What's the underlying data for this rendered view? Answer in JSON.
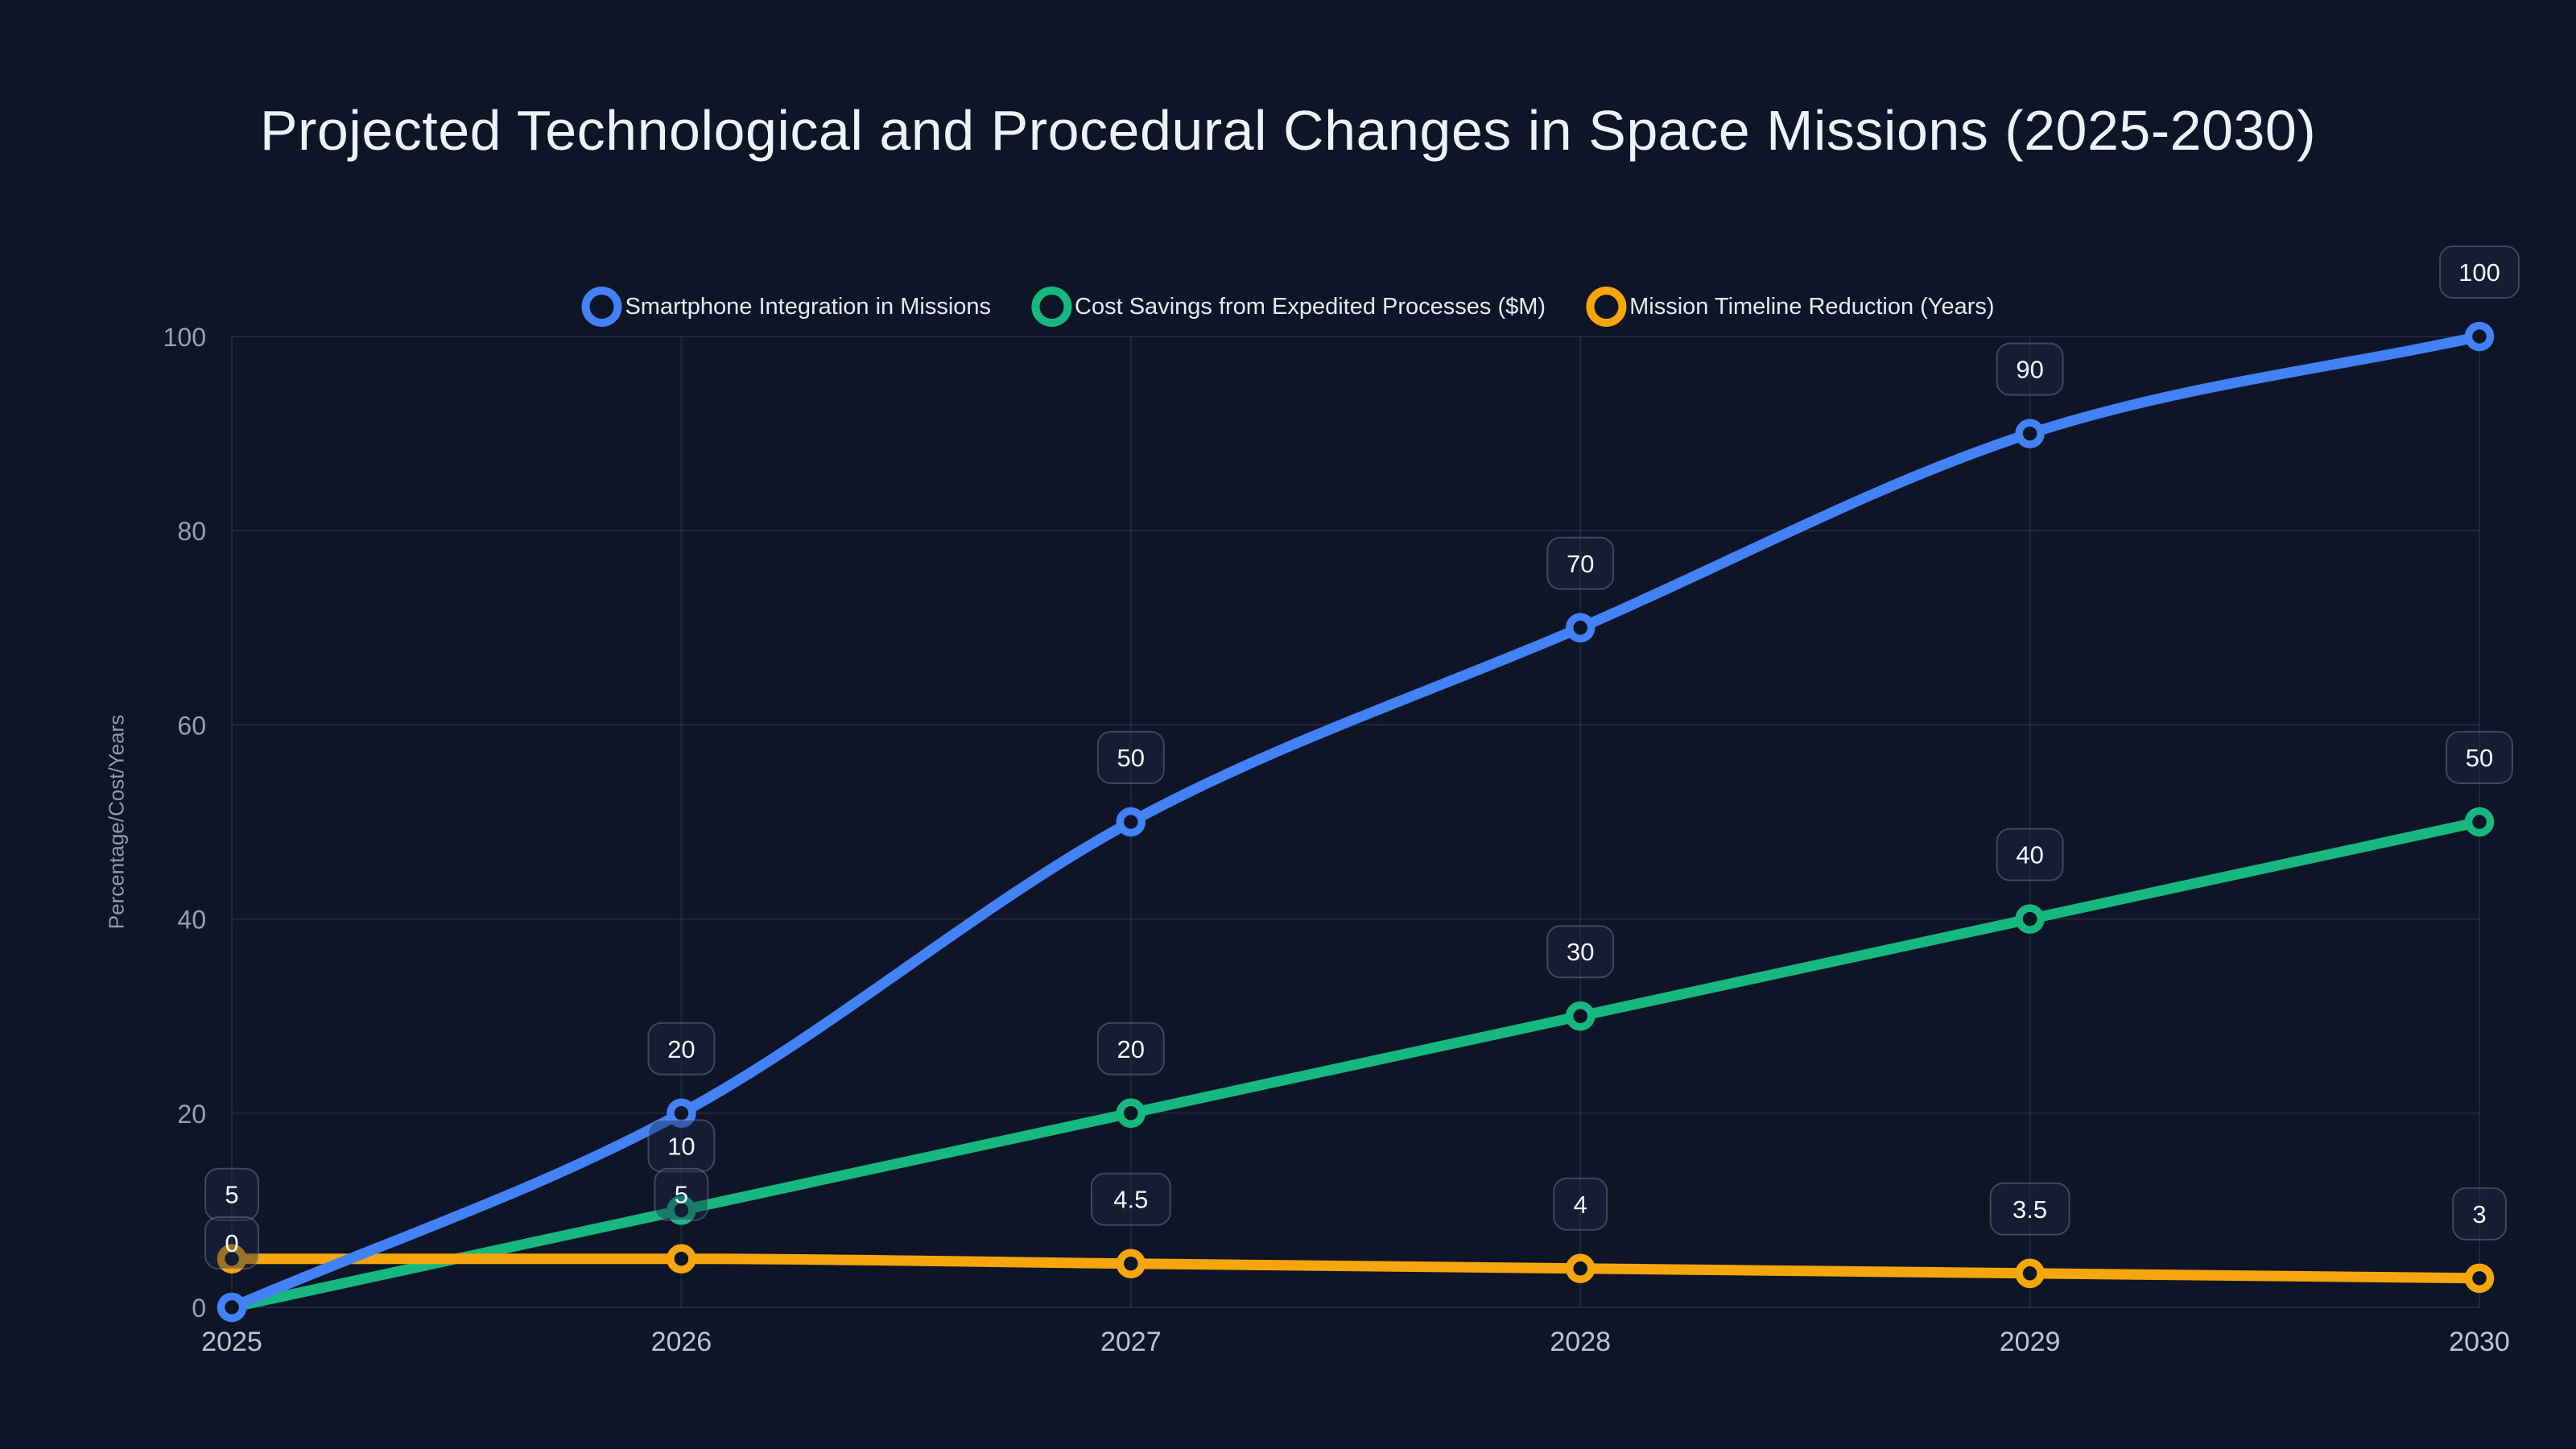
{
  "title": "Projected Technological and Procedural Changes in Space Missions (2025-2030)",
  "colors": {
    "background": "#0e1527",
    "grid": "rgba(148,163,184,0.13)",
    "y_tick_text": "#96a0b2",
    "x_tick_text": "#bcc4d0",
    "title_text": "#edf1f8",
    "legend_text": "#e4eaf2",
    "point_label_text": "#f4f7fb",
    "point_label_border": "rgba(148,163,184,0.34)",
    "point_label_fill": "rgba(28,40,70,0.42)",
    "series_blue": "#4282f6",
    "series_green": "#16b87f",
    "series_orange": "#f6a60d"
  },
  "chart_data": {
    "type": "line",
    "title": "Projected Technological and Procedural Changes in Space Missions (2025-2030)",
    "x": [
      "2025",
      "2026",
      "2027",
      "2028",
      "2029",
      "2030"
    ],
    "xlabel": "",
    "ylabel": "Percentage/Cost/Years",
    "ylim": [
      0,
      100
    ],
    "yticks": [
      0,
      20,
      40,
      60,
      80,
      100
    ],
    "grid": true,
    "legend_position": "top-center",
    "point_style": "hollow-circle",
    "series": [
      {
        "id": "smartphone-integration",
        "name": "Smartphone Integration in Missions",
        "color": "#4282f6",
        "values": [
          0,
          20,
          50,
          70,
          90,
          100
        ],
        "point_labels": [
          "0",
          "20",
          "50",
          "70",
          "90",
          "100"
        ]
      },
      {
        "id": "cost-savings",
        "name": "Cost Savings from Expedited Processes ($M)",
        "color": "#16b87f",
        "values": [
          0,
          10,
          20,
          30,
          40,
          50
        ],
        "point_labels": [
          null,
          "10",
          "20",
          "30",
          "40",
          "50"
        ]
      },
      {
        "id": "timeline-reduction",
        "name": "Mission Timeline Reduction (Years)",
        "color": "#f6a60d",
        "values": [
          5,
          5,
          4.5,
          4,
          3.5,
          3
        ],
        "point_labels": [
          "5",
          "5",
          "4.5",
          "4",
          "3.5",
          "3"
        ]
      }
    ]
  }
}
